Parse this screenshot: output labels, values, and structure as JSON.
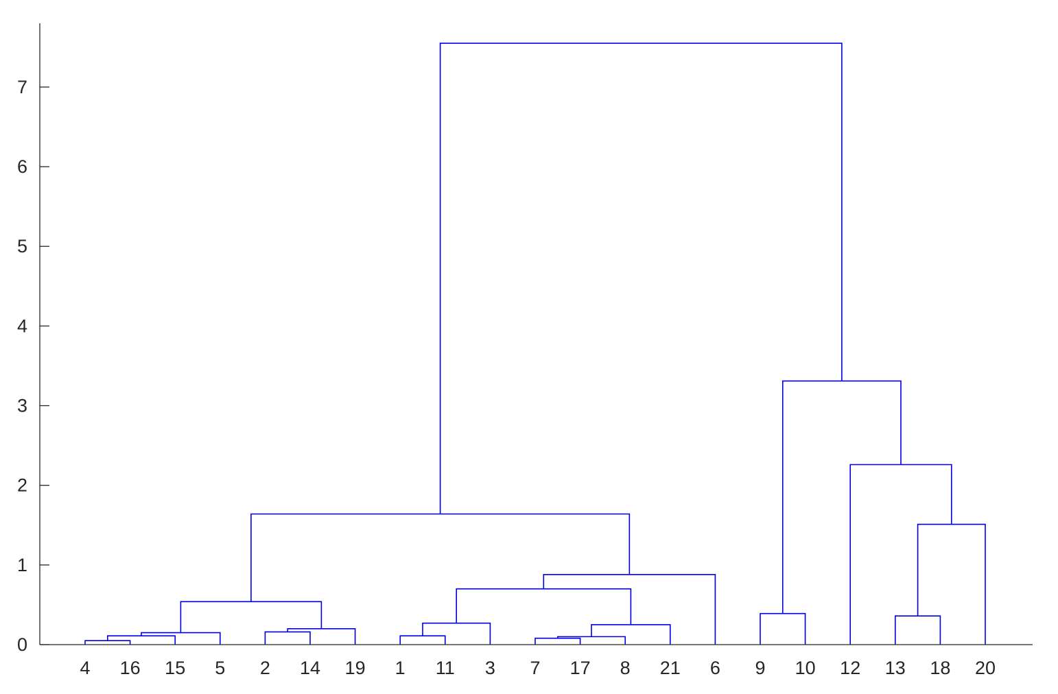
{
  "chart_data": {
    "type": "dendrogram",
    "title": "",
    "xlabel": "",
    "ylabel": "",
    "ylim": [
      0,
      7.8
    ],
    "yticks": [
      0,
      1,
      2,
      3,
      4,
      5,
      6,
      7
    ],
    "leaf_order": [
      "4",
      "16",
      "15",
      "5",
      "2",
      "14",
      "19",
      "1",
      "11",
      "3",
      "7",
      "17",
      "8",
      "21",
      "6",
      "9",
      "10",
      "12",
      "13",
      "18",
      "20"
    ],
    "link_color": "#0000e6",
    "grid": false,
    "merges": [
      {
        "left": "4",
        "right": "16",
        "height": 0.05
      },
      {
        "left": "4-16",
        "right": "15",
        "height": 0.11
      },
      {
        "left": "4-16-15",
        "right": "5",
        "height": 0.15
      },
      {
        "left": "2",
        "right": "14",
        "height": 0.16
      },
      {
        "left": "2-14",
        "right": "19",
        "height": 0.2
      },
      {
        "left": "4-16-15-5",
        "right": "2-14-19",
        "height": 0.54
      },
      {
        "left": "1",
        "right": "11",
        "height": 0.11
      },
      {
        "left": "1-11",
        "right": "3",
        "height": 0.27
      },
      {
        "left": "7",
        "right": "17",
        "height": 0.08
      },
      {
        "left": "7-17",
        "right": "8",
        "height": 0.1
      },
      {
        "left": "7-17-8",
        "right": "21",
        "height": 0.25
      },
      {
        "left": "1-11-3",
        "right": "7-17-8-21",
        "height": 0.7
      },
      {
        "left": "1-11-3-7-17-8-21",
        "right": "6",
        "height": 0.88
      },
      {
        "left": "4-16-15-5-2-14-19",
        "right": "1-11-3-7-17-8-21-6",
        "height": 1.64
      },
      {
        "left": "9",
        "right": "10",
        "height": 0.39
      },
      {
        "left": "13",
        "right": "18",
        "height": 0.36
      },
      {
        "left": "13-18",
        "right": "20",
        "height": 1.51
      },
      {
        "left": "12",
        "right": "13-18-20",
        "height": 2.26
      },
      {
        "left": "9-10",
        "right": "12-13-18-20",
        "height": 3.31
      },
      {
        "left": "4-16-15-5-2-14-19-1-11-3-7-17-8-21-6",
        "right": "9-10-12-13-18-20",
        "height": 7.55
      }
    ]
  }
}
